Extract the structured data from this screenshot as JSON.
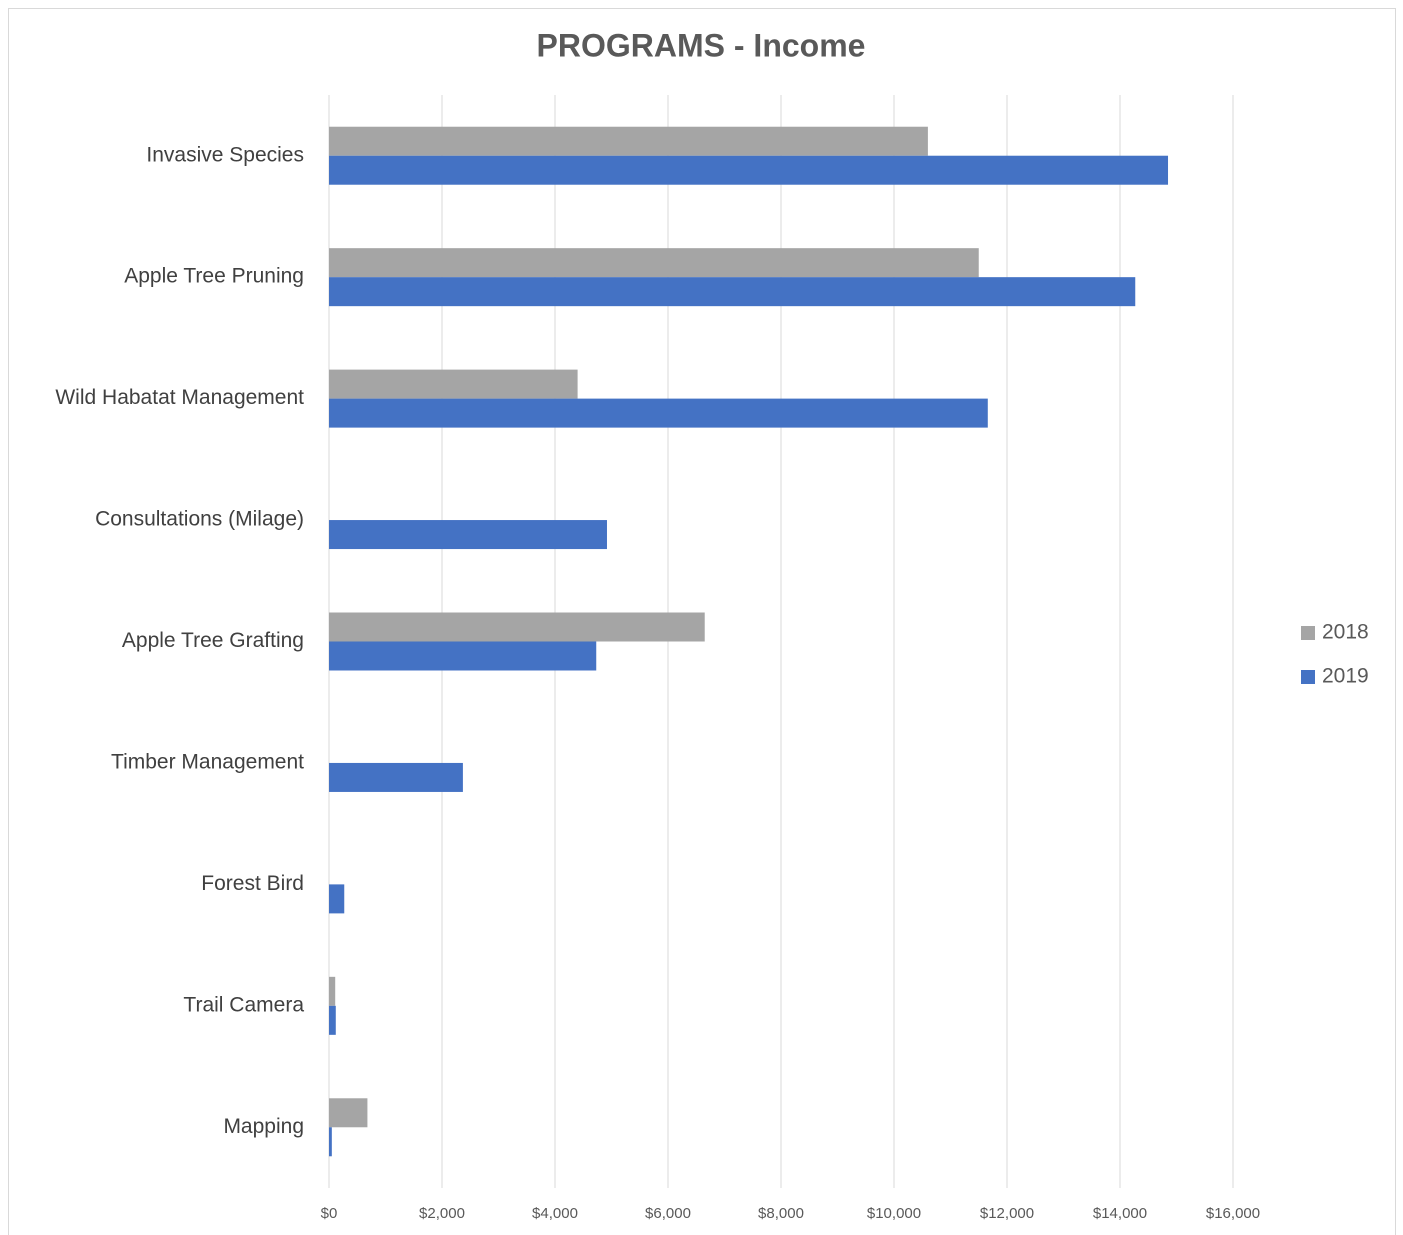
{
  "chart_data": {
    "type": "bar",
    "orientation": "horizontal",
    "title": "PROGRAMS - Income",
    "categories": [
      "Invasive Species",
      "Apple Tree Pruning",
      "Wild Habatat Management",
      "Consultations  (Milage)",
      "Apple Tree Grafting",
      "Timber Management",
      "Forest Bird",
      "Trail Camera",
      "Mapping"
    ],
    "series": [
      {
        "name": "2018",
        "color": "#a5a5a5",
        "values": [
          10600,
          11500,
          4400,
          null,
          6650,
          null,
          null,
          110,
          680
        ]
      },
      {
        "name": "2019",
        "color": "#4472c4",
        "values": [
          14850,
          14270,
          11660,
          4920,
          4730,
          2370,
          270,
          120,
          50
        ]
      }
    ],
    "xlim": [
      0,
      16000
    ],
    "xticks": [
      {
        "value": 0,
        "label": "$0"
      },
      {
        "value": 2000,
        "label": "$2,000"
      },
      {
        "value": 4000,
        "label": "$4,000"
      },
      {
        "value": 6000,
        "label": "$6,000"
      },
      {
        "value": 8000,
        "label": "$8,000"
      },
      {
        "value": 10000,
        "label": "$10,000"
      },
      {
        "value": 12000,
        "label": "$12,000"
      },
      {
        "value": 14000,
        "label": "$14,000"
      },
      {
        "value": 16000,
        "label": "$16,000"
      }
    ],
    "grid": true,
    "legend": "right"
  }
}
